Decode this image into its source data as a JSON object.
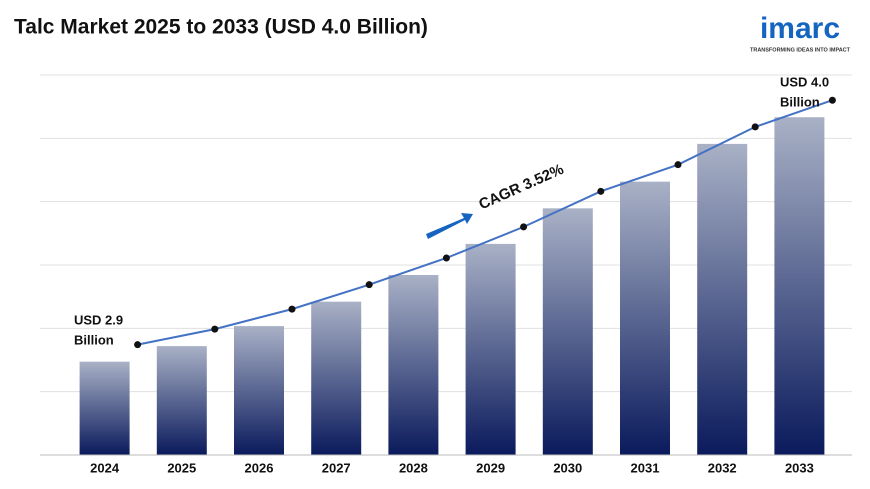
{
  "chart_data": {
    "type": "bar",
    "title": "Talc Market 2025 to 2033 (USD 4.0 Billion)",
    "categories": [
      "2024",
      "2025",
      "2026",
      "2027",
      "2028",
      "2029",
      "2030",
      "2031",
      "2032",
      "2033"
    ],
    "values": [
      2.9,
      2.97,
      3.06,
      3.17,
      3.29,
      3.43,
      3.59,
      3.71,
      3.88,
      4.0
    ],
    "color": "#0a1a5c",
    "line_color": "#4472c4",
    "ylim": [
      2.48,
      4.19
    ],
    "grid": true,
    "start_label": [
      "USD 2.9",
      "Billion"
    ],
    "end_label": [
      "USD 4.0",
      "Billion"
    ],
    "cagr_label": "CAGR 3.52%"
  },
  "logo": {
    "name": "imarc",
    "tagline": "TRANSFORMING IDEAS INTO IMPACT"
  }
}
